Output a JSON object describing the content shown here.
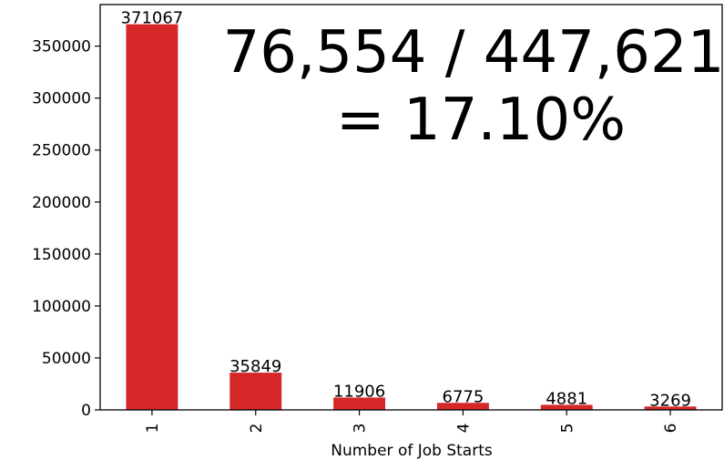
{
  "chart_data": {
    "type": "bar",
    "categories": [
      "1",
      "2",
      "3",
      "4",
      "5",
      "6"
    ],
    "values": [
      371067,
      35849,
      11906,
      6775,
      4881,
      3269
    ],
    "data_labels": [
      "371067",
      "35849",
      "11906",
      "6775",
      "4881",
      "3269"
    ],
    "xlabel": "Number of Job Starts",
    "ylabel": "",
    "ylim": [
      0,
      390000
    ],
    "yticks": [
      0,
      50000,
      100000,
      150000,
      200000,
      250000,
      300000,
      350000
    ],
    "ytick_labels": [
      "0",
      "50000",
      "100000",
      "150000",
      "200000",
      "250000",
      "300000",
      "350000"
    ],
    "annotation_lines": [
      "76,554 / 447,621",
      "= 17.10%"
    ],
    "bar_color": "#d62728",
    "grid": false
  }
}
